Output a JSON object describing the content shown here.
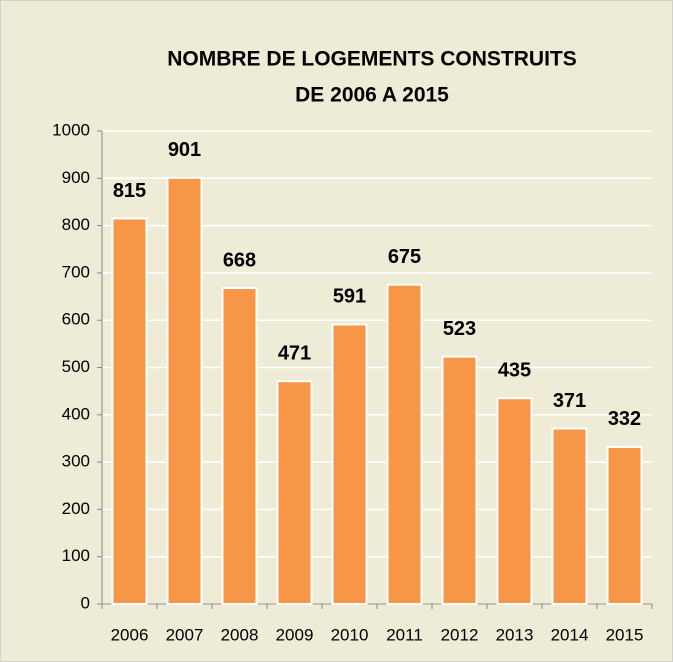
{
  "chart_data": {
    "type": "bar",
    "title": [
      "NOMBRE DE LOGEMENTS CONSTRUITS",
      "DE 2006 A 2015"
    ],
    "categories": [
      "2006",
      "2007",
      "2008",
      "2009",
      "2010",
      "2011",
      "2012",
      "2013",
      "2014",
      "2015"
    ],
    "values": [
      815,
      901,
      668,
      471,
      591,
      675,
      523,
      435,
      371,
      332
    ],
    "color": "#f79646",
    "ylim": [
      0,
      1000
    ],
    "yticks": [
      0,
      100,
      200,
      300,
      400,
      500,
      600,
      700,
      800,
      900,
      1000
    ],
    "grid": true
  }
}
